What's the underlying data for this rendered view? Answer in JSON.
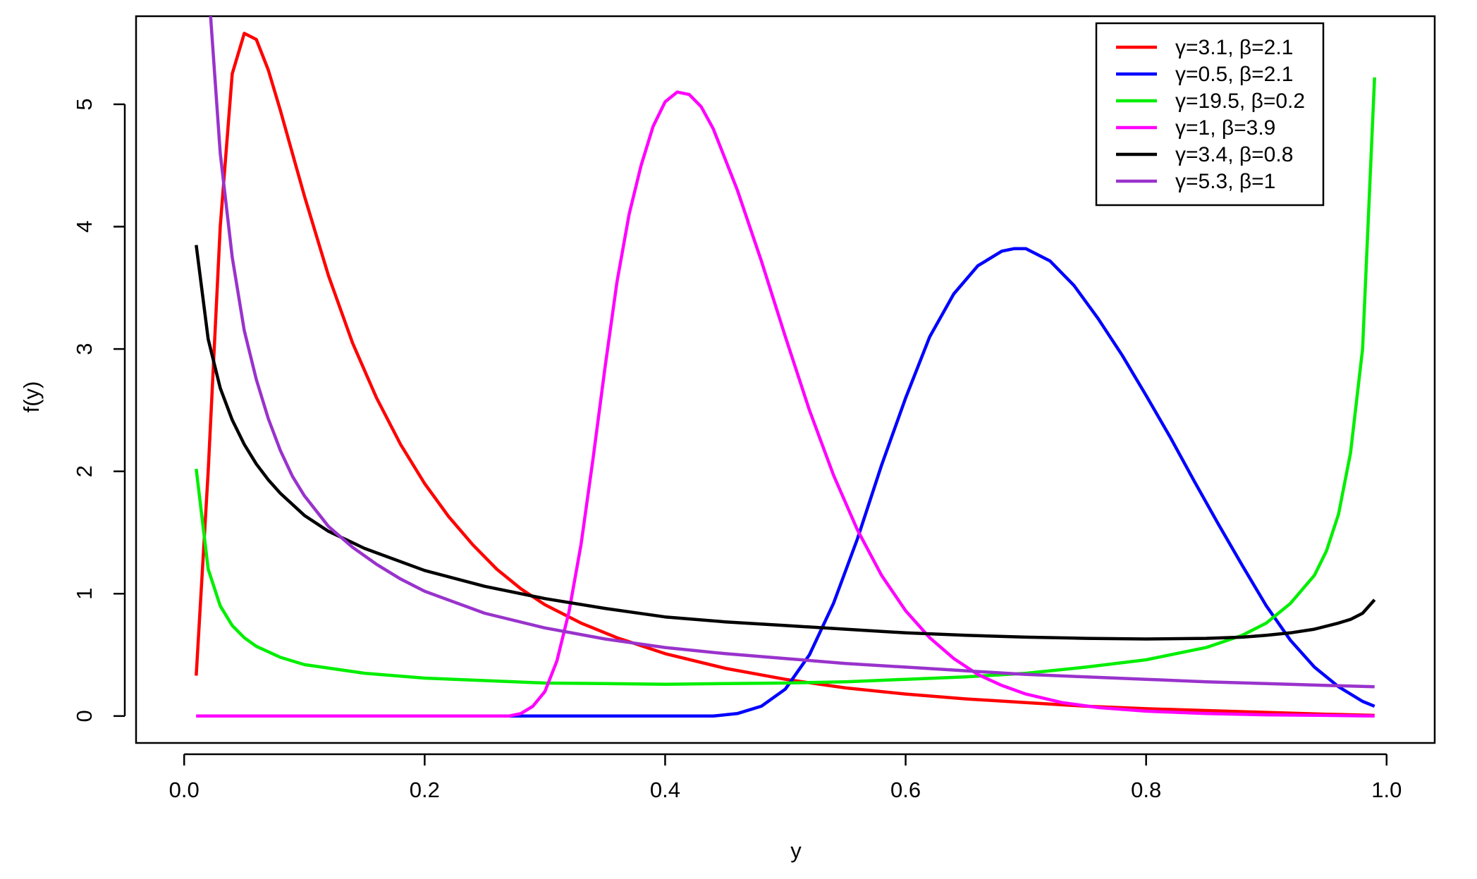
{
  "chart_data": {
    "type": "line",
    "xlabel": "y",
    "ylabel": "f(y)",
    "xlim": [
      -0.04,
      1.04
    ],
    "ylim": [
      -0.22,
      5.72
    ],
    "xticks": [
      {
        "value": 0.0,
        "label": "0.0"
      },
      {
        "value": 0.2,
        "label": "0.2"
      },
      {
        "value": 0.4,
        "label": "0.4"
      },
      {
        "value": 0.6,
        "label": "0.6"
      },
      {
        "value": 0.8,
        "label": "0.8"
      },
      {
        "value": 1.0,
        "label": "1.0"
      }
    ],
    "yticks": [
      {
        "value": 0,
        "label": "0"
      },
      {
        "value": 1,
        "label": "1"
      },
      {
        "value": 2,
        "label": "2"
      },
      {
        "value": 3,
        "label": "3"
      },
      {
        "value": 4,
        "label": "4"
      },
      {
        "value": 5,
        "label": "5"
      }
    ],
    "grid": false,
    "legend_position": "top-right",
    "series": [
      {
        "name": "γ=3.1, β=2.1",
        "color": "#ff0000",
        "points": [
          [
            0.01,
            0.33
          ],
          [
            0.02,
            2.0
          ],
          [
            0.03,
            4.0
          ],
          [
            0.04,
            5.25
          ],
          [
            0.05,
            5.58
          ],
          [
            0.06,
            5.53
          ],
          [
            0.07,
            5.28
          ],
          [
            0.08,
            4.95
          ],
          [
            0.09,
            4.6
          ],
          [
            0.1,
            4.25
          ],
          [
            0.12,
            3.6
          ],
          [
            0.14,
            3.05
          ],
          [
            0.16,
            2.6
          ],
          [
            0.18,
            2.22
          ],
          [
            0.2,
            1.9
          ],
          [
            0.22,
            1.63
          ],
          [
            0.24,
            1.4
          ],
          [
            0.26,
            1.2
          ],
          [
            0.28,
            1.04
          ],
          [
            0.3,
            0.91
          ],
          [
            0.33,
            0.76
          ],
          [
            0.36,
            0.64
          ],
          [
            0.4,
            0.51
          ],
          [
            0.45,
            0.39
          ],
          [
            0.5,
            0.3
          ],
          [
            0.55,
            0.23
          ],
          [
            0.6,
            0.18
          ],
          [
            0.65,
            0.14
          ],
          [
            0.7,
            0.11
          ],
          [
            0.75,
            0.08
          ],
          [
            0.8,
            0.06
          ],
          [
            0.85,
            0.045
          ],
          [
            0.9,
            0.03
          ],
          [
            0.95,
            0.015
          ],
          [
            0.99,
            0.005
          ]
        ]
      },
      {
        "name": "γ=0.5, β=2.1",
        "color": "#0000ff",
        "points": [
          [
            0.01,
            0.0
          ],
          [
            0.25,
            0.0
          ],
          [
            0.3,
            0.0
          ],
          [
            0.35,
            0.0
          ],
          [
            0.4,
            0.0
          ],
          [
            0.44,
            0.0
          ],
          [
            0.46,
            0.02
          ],
          [
            0.48,
            0.08
          ],
          [
            0.5,
            0.22
          ],
          [
            0.52,
            0.5
          ],
          [
            0.54,
            0.92
          ],
          [
            0.56,
            1.45
          ],
          [
            0.58,
            2.05
          ],
          [
            0.6,
            2.6
          ],
          [
            0.62,
            3.1
          ],
          [
            0.64,
            3.45
          ],
          [
            0.66,
            3.68
          ],
          [
            0.68,
            3.8
          ],
          [
            0.69,
            3.82
          ],
          [
            0.7,
            3.82
          ],
          [
            0.72,
            3.72
          ],
          [
            0.74,
            3.52
          ],
          [
            0.76,
            3.25
          ],
          [
            0.78,
            2.95
          ],
          [
            0.8,
            2.62
          ],
          [
            0.82,
            2.28
          ],
          [
            0.84,
            1.92
          ],
          [
            0.86,
            1.57
          ],
          [
            0.88,
            1.23
          ],
          [
            0.9,
            0.9
          ],
          [
            0.92,
            0.62
          ],
          [
            0.94,
            0.4
          ],
          [
            0.96,
            0.24
          ],
          [
            0.98,
            0.12
          ],
          [
            0.99,
            0.08
          ]
        ]
      },
      {
        "name": "γ=19.5, β=0.2",
        "color": "#00ee00",
        "points": [
          [
            0.01,
            2.02
          ],
          [
            0.02,
            1.2
          ],
          [
            0.03,
            0.9
          ],
          [
            0.04,
            0.74
          ],
          [
            0.05,
            0.64
          ],
          [
            0.06,
            0.57
          ],
          [
            0.08,
            0.48
          ],
          [
            0.1,
            0.42
          ],
          [
            0.15,
            0.35
          ],
          [
            0.2,
            0.31
          ],
          [
            0.25,
            0.29
          ],
          [
            0.3,
            0.27
          ],
          [
            0.35,
            0.265
          ],
          [
            0.4,
            0.26
          ],
          [
            0.45,
            0.265
          ],
          [
            0.5,
            0.27
          ],
          [
            0.55,
            0.28
          ],
          [
            0.6,
            0.3
          ],
          [
            0.65,
            0.32
          ],
          [
            0.7,
            0.35
          ],
          [
            0.75,
            0.4
          ],
          [
            0.8,
            0.46
          ],
          [
            0.85,
            0.56
          ],
          [
            0.88,
            0.66
          ],
          [
            0.9,
            0.76
          ],
          [
            0.92,
            0.92
          ],
          [
            0.94,
            1.15
          ],
          [
            0.95,
            1.35
          ],
          [
            0.96,
            1.65
          ],
          [
            0.97,
            2.15
          ],
          [
            0.98,
            3.0
          ],
          [
            0.99,
            5.22
          ]
        ]
      },
      {
        "name": "γ=1, β=3.9",
        "color": "#ff00ff",
        "points": [
          [
            0.01,
            0.0
          ],
          [
            0.1,
            0.0
          ],
          [
            0.2,
            0.0
          ],
          [
            0.27,
            0.0
          ],
          [
            0.28,
            0.02
          ],
          [
            0.29,
            0.08
          ],
          [
            0.3,
            0.2
          ],
          [
            0.31,
            0.45
          ],
          [
            0.32,
            0.85
          ],
          [
            0.33,
            1.4
          ],
          [
            0.34,
            2.1
          ],
          [
            0.35,
            2.85
          ],
          [
            0.36,
            3.55
          ],
          [
            0.37,
            4.1
          ],
          [
            0.38,
            4.5
          ],
          [
            0.39,
            4.82
          ],
          [
            0.4,
            5.02
          ],
          [
            0.41,
            5.1
          ],
          [
            0.42,
            5.08
          ],
          [
            0.43,
            4.98
          ],
          [
            0.44,
            4.8
          ],
          [
            0.46,
            4.3
          ],
          [
            0.48,
            3.72
          ],
          [
            0.5,
            3.1
          ],
          [
            0.52,
            2.5
          ],
          [
            0.54,
            1.97
          ],
          [
            0.56,
            1.52
          ],
          [
            0.58,
            1.15
          ],
          [
            0.6,
            0.86
          ],
          [
            0.62,
            0.64
          ],
          [
            0.64,
            0.47
          ],
          [
            0.66,
            0.34
          ],
          [
            0.68,
            0.25
          ],
          [
            0.7,
            0.18
          ],
          [
            0.73,
            0.11
          ],
          [
            0.76,
            0.07
          ],
          [
            0.8,
            0.04
          ],
          [
            0.85,
            0.02
          ],
          [
            0.9,
            0.01
          ],
          [
            0.95,
            0.005
          ],
          [
            0.99,
            0.0
          ]
        ]
      },
      {
        "name": "γ=3.4, β=0.8",
        "color": "#000000",
        "points": [
          [
            0.01,
            3.85
          ],
          [
            0.02,
            3.08
          ],
          [
            0.03,
            2.68
          ],
          [
            0.04,
            2.42
          ],
          [
            0.05,
            2.22
          ],
          [
            0.06,
            2.06
          ],
          [
            0.07,
            1.93
          ],
          [
            0.08,
            1.82
          ],
          [
            0.1,
            1.64
          ],
          [
            0.12,
            1.51
          ],
          [
            0.15,
            1.37
          ],
          [
            0.2,
            1.19
          ],
          [
            0.25,
            1.06
          ],
          [
            0.3,
            0.96
          ],
          [
            0.35,
            0.88
          ],
          [
            0.4,
            0.81
          ],
          [
            0.45,
            0.77
          ],
          [
            0.5,
            0.74
          ],
          [
            0.55,
            0.71
          ],
          [
            0.6,
            0.68
          ],
          [
            0.65,
            0.66
          ],
          [
            0.7,
            0.645
          ],
          [
            0.75,
            0.635
          ],
          [
            0.8,
            0.63
          ],
          [
            0.85,
            0.635
          ],
          [
            0.88,
            0.645
          ],
          [
            0.9,
            0.66
          ],
          [
            0.92,
            0.68
          ],
          [
            0.94,
            0.71
          ],
          [
            0.96,
            0.76
          ],
          [
            0.97,
            0.79
          ],
          [
            0.98,
            0.84
          ],
          [
            0.99,
            0.95
          ]
        ]
      },
      {
        "name": "γ=5.3, β=1",
        "color": "#9933cc",
        "points": [
          [
            0.022,
            5.72
          ],
          [
            0.03,
            4.6
          ],
          [
            0.04,
            3.75
          ],
          [
            0.05,
            3.15
          ],
          [
            0.06,
            2.75
          ],
          [
            0.07,
            2.43
          ],
          [
            0.08,
            2.17
          ],
          [
            0.09,
            1.96
          ],
          [
            0.1,
            1.8
          ],
          [
            0.12,
            1.55
          ],
          [
            0.14,
            1.38
          ],
          [
            0.16,
            1.24
          ],
          [
            0.18,
            1.12
          ],
          [
            0.2,
            1.02
          ],
          [
            0.25,
            0.84
          ],
          [
            0.3,
            0.72
          ],
          [
            0.35,
            0.63
          ],
          [
            0.4,
            0.56
          ],
          [
            0.45,
            0.51
          ],
          [
            0.5,
            0.47
          ],
          [
            0.55,
            0.43
          ],
          [
            0.6,
            0.4
          ],
          [
            0.65,
            0.37
          ],
          [
            0.7,
            0.34
          ],
          [
            0.75,
            0.32
          ],
          [
            0.8,
            0.3
          ],
          [
            0.85,
            0.28
          ],
          [
            0.9,
            0.265
          ],
          [
            0.95,
            0.25
          ],
          [
            0.99,
            0.24
          ]
        ]
      }
    ]
  }
}
